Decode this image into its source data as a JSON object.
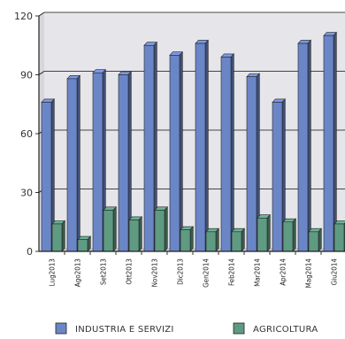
{
  "chart_data": {
    "type": "bar",
    "categories": [
      "Lug2013",
      "Ago2013",
      "Set2013",
      "Ott2013",
      "Nov2013",
      "Dic2013",
      "Gen2014",
      "Feb2014",
      "Mar2014",
      "Apr2014",
      "Mag2014",
      "Giu2014"
    ],
    "series": [
      {
        "name": "INDUSTRIA E SERVIZI",
        "color": "#6b86c7",
        "values": [
          76,
          88,
          91,
          90,
          105,
          100,
          106,
          99,
          89,
          76,
          106,
          110
        ]
      },
      {
        "name": "AGRICOLTURA",
        "color": "#5f9a82",
        "values": [
          14,
          6,
          21,
          16,
          21,
          11,
          10,
          10,
          17,
          15,
          10,
          14
        ]
      }
    ],
    "yticks": [
      "0",
      "30",
      "60",
      "90",
      "120"
    ],
    "ylim": [
      0,
      120
    ],
    "grid": true,
    "legend_position": "bottom"
  }
}
